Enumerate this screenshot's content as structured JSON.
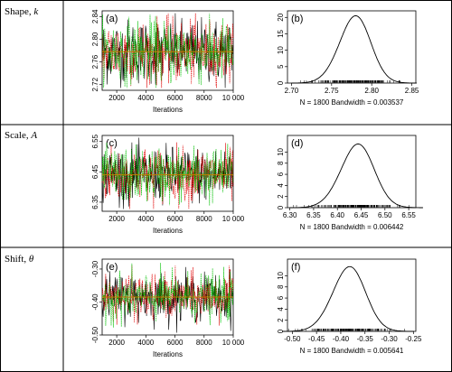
{
  "rows": [
    {
      "label": "Shape, ",
      "symbol": "k"
    },
    {
      "label": "Scale, ",
      "symbol": "A"
    },
    {
      "label": "Shift, ",
      "symbol": "θ"
    }
  ],
  "colors": {
    "chain1": "#000000",
    "chain2": "#e00000",
    "chain3": "#00c000",
    "mean": "#c08000"
  },
  "chart_data": [
    {
      "type": "line",
      "panel": "(a)",
      "xlabel": "Iterations",
      "ylabel": "",
      "xlim": [
        1000,
        10000
      ],
      "ylim": [
        2.71,
        2.85
      ],
      "xticks": [
        2000,
        4000,
        6000,
        8000,
        10000
      ],
      "xtick_labels": [
        "2000",
        "4000",
        "6000",
        "8000",
        "10 000"
      ],
      "yticks": [
        2.72,
        2.76,
        2.8,
        2.84
      ],
      "ytick_labels": [
        "2.72",
        "2.76",
        "2.80",
        "2.84"
      ],
      "center": 2.778,
      "spread": 0.028,
      "series": [
        {
          "values": []
        },
        {
          "values": []
        },
        {
          "values": []
        }
      ],
      "mean_line": 2.778
    },
    {
      "type": "line",
      "panel": "(b)",
      "xlabel": "N = 1800   Bandwidth = 0.003537",
      "ylabel": "",
      "xlim": [
        2.695,
        2.855
      ],
      "ylim": [
        0,
        22
      ],
      "xticks": [
        2.7,
        2.75,
        2.8,
        2.85
      ],
      "xtick_labels": [
        "2.70",
        "2.75",
        "2.80",
        "2.85"
      ],
      "yticks": [
        0,
        5,
        10,
        15,
        20
      ],
      "ytick_labels": [
        "0",
        "5",
        "10",
        "15",
        "20"
      ],
      "density": {
        "mean": 2.778,
        "sd": 0.0195,
        "peak": 20.4
      }
    },
    {
      "type": "line",
      "panel": "(c)",
      "xlabel": "Iterations",
      "ylabel": "",
      "xlim": [
        1000,
        10000
      ],
      "ylim": [
        6.32,
        6.57
      ],
      "xticks": [
        2000,
        4000,
        6000,
        8000,
        10000
      ],
      "xtick_labels": [
        "2000",
        "4000",
        "6000",
        "8000",
        "10 000"
      ],
      "yticks": [
        6.35,
        6.45,
        6.55
      ],
      "ytick_labels": [
        "6.35",
        "6.45",
        "6.55"
      ],
      "center": 6.44,
      "spread": 0.045,
      "series": [
        {
          "values": []
        },
        {
          "values": []
        },
        {
          "values": []
        }
      ],
      "mean_line": 6.44
    },
    {
      "type": "line",
      "panel": "(d)",
      "xlabel": "N = 1800   Bandwidth = 0.006442",
      "ylabel": "",
      "xlim": [
        6.295,
        6.565
      ],
      "ylim": [
        0,
        13
      ],
      "xticks": [
        6.3,
        6.35,
        6.4,
        6.45,
        6.5,
        6.55
      ],
      "xtick_labels": [
        "6.30",
        "6.35",
        "6.40",
        "6.45",
        "6.50",
        "6.55"
      ],
      "yticks": [
        0,
        2,
        4,
        6,
        8,
        10
      ],
      "ytick_labels": [
        "0",
        "2",
        "4",
        "6",
        "8",
        "10"
      ],
      "density": {
        "mean": 6.44,
        "sd": 0.035,
        "peak": 11.4
      }
    },
    {
      "type": "line",
      "panel": "(e)",
      "xlabel": "Iterations",
      "ylabel": "",
      "xlim": [
        1000,
        10000
      ],
      "ylim": [
        -0.5,
        -0.27
      ],
      "xticks": [
        2000,
        4000,
        6000,
        8000,
        10000
      ],
      "xtick_labels": [
        "2000",
        "4000",
        "6000",
        "8000",
        "10 000"
      ],
      "yticks": [
        -0.5,
        -0.4,
        -0.3
      ],
      "ytick_labels": [
        "-0.50",
        "-0.40",
        "-0.30"
      ],
      "center": -0.385,
      "spread": 0.035,
      "series": [
        {
          "values": []
        },
        {
          "values": []
        },
        {
          "values": []
        }
      ],
      "mean_line": -0.385
    },
    {
      "type": "line",
      "panel": "(f)",
      "xlabel": "N = 1800   Bandwidth = 0.005641",
      "ylabel": "",
      "xlim": [
        -0.51,
        -0.245
      ],
      "ylim": [
        0,
        13
      ],
      "xticks": [
        -0.5,
        -0.45,
        -0.4,
        -0.35,
        -0.3,
        -0.25
      ],
      "xtick_labels": [
        "-0.50",
        "-0.45",
        "-0.40",
        "-0.35",
        "-0.30",
        "-0.25"
      ],
      "yticks": [
        0,
        2,
        4,
        6,
        8,
        10
      ],
      "ytick_labels": [
        "0",
        "2",
        "4",
        "6",
        "8",
        "10"
      ],
      "density": {
        "mean": -0.385,
        "sd": 0.034,
        "peak": 11.6
      }
    }
  ]
}
